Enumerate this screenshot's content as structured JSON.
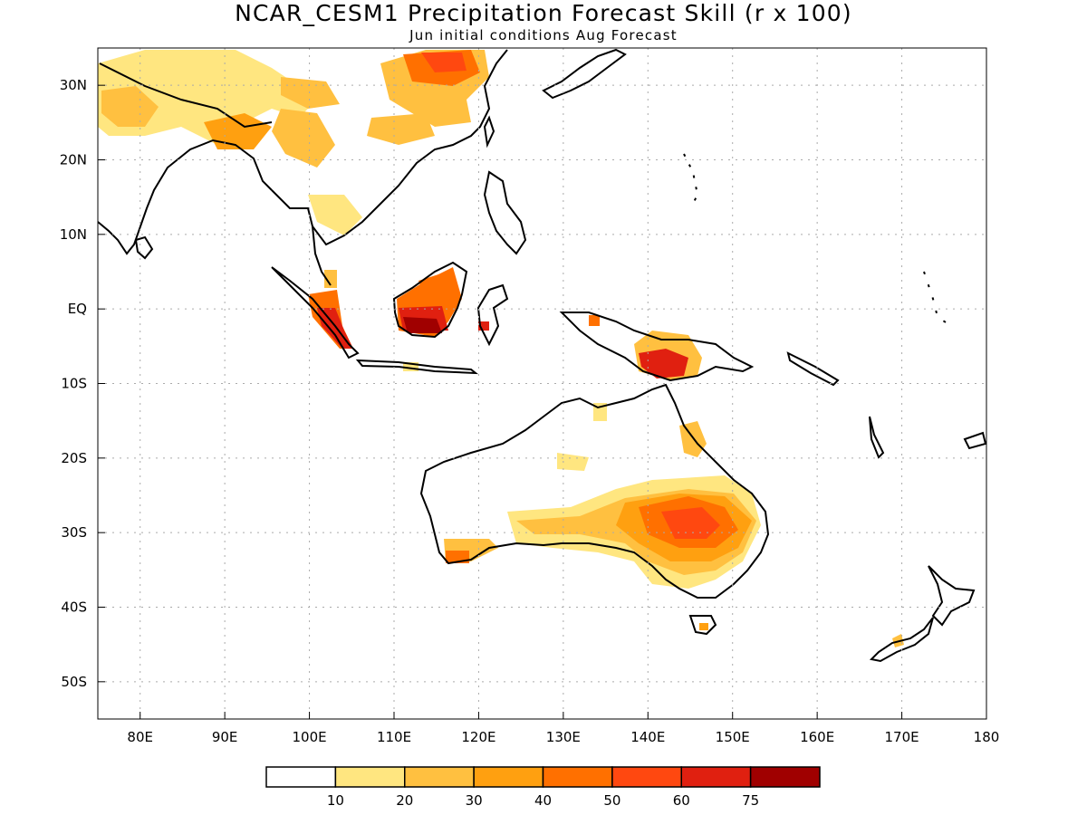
{
  "title": "NCAR_CESM1 Precipitation Forecast Skill (r x 100)",
  "subtitle": "Jun initial conditions  Aug Forecast",
  "map": {
    "lon_range": [
      75,
      180
    ],
    "lat_range": [
      -55,
      35
    ],
    "lat_ticks": [
      {
        "value": 30,
        "label": "30N"
      },
      {
        "value": 20,
        "label": "20N"
      },
      {
        "value": 10,
        "label": "10N"
      },
      {
        "value": 0,
        "label": "EQ"
      },
      {
        "value": -10,
        "label": "10S"
      },
      {
        "value": -20,
        "label": "20S"
      },
      {
        "value": -30,
        "label": "30S"
      },
      {
        "value": -40,
        "label": "40S"
      },
      {
        "value": -50,
        "label": "50S"
      }
    ],
    "lon_ticks": [
      {
        "value": 80,
        "label": "80E"
      },
      {
        "value": 90,
        "label": "90E"
      },
      {
        "value": 100,
        "label": "100E"
      },
      {
        "value": 110,
        "label": "110E"
      },
      {
        "value": 120,
        "label": "120E"
      },
      {
        "value": 130,
        "label": "130E"
      },
      {
        "value": 140,
        "label": "140E"
      },
      {
        "value": 150,
        "label": "150E"
      },
      {
        "value": 160,
        "label": "160E"
      },
      {
        "value": 170,
        "label": "170E"
      },
      {
        "value": 180,
        "label": "180"
      }
    ],
    "gridlines": true
  },
  "colorbar": {
    "colors": [
      "#ffffff",
      "#ffe680",
      "#ffc040",
      "#ffa010",
      "#ff7000",
      "#ff4810",
      "#e02010",
      "#a00000"
    ],
    "labels": [
      "10",
      "20",
      "30",
      "40",
      "50",
      "60",
      "75"
    ]
  }
}
